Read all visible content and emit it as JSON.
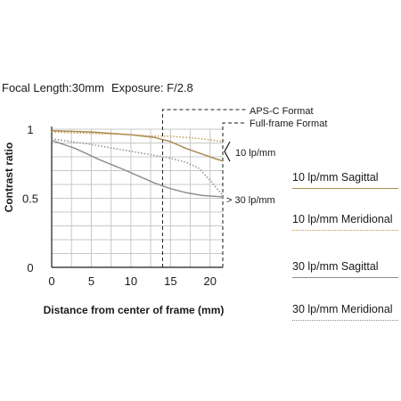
{
  "header": {
    "focal_length": "Focal Length:30mm",
    "exposure": "Exposure: F/2.8"
  },
  "legend": [
    {
      "label": "10 lp/mm Sagittal",
      "color": "#a88c52",
      "style": "solid"
    },
    {
      "label": "10 lp/mm Meridional",
      "color": "#c29a5a",
      "style": "dotted"
    },
    {
      "label": "30 lp/mm Sagittal",
      "color": "#8f8f8f",
      "style": "solid"
    },
    {
      "label": "30 lp/mm Meridional",
      "color": "#8f8f8f",
      "style": "dotted"
    }
  ],
  "chart_data": {
    "type": "line",
    "xlabel": "Distance from center of frame (mm)",
    "ylabel": "Contrast ratio",
    "xlim": [
      0,
      21.6
    ],
    "ylim": [
      0,
      1
    ],
    "x_ticks": [
      "0",
      "5",
      "10",
      "15",
      "20"
    ],
    "y_ticks": [
      "0",
      "0.5",
      "1"
    ],
    "grid": true,
    "series": [
      {
        "name": "10 lp/mm Sagittal",
        "color": "#a88c52",
        "dash": "solid",
        "points": [
          [
            0,
            0.99
          ],
          [
            5,
            0.98
          ],
          [
            10,
            0.96
          ],
          [
            13,
            0.94
          ],
          [
            15,
            0.91
          ],
          [
            17,
            0.86
          ],
          [
            19,
            0.82
          ],
          [
            20.5,
            0.79
          ],
          [
            21.6,
            0.77
          ]
        ]
      },
      {
        "name": "10 lp/mm Meridional",
        "color": "#c29a5a",
        "dash": "dotted",
        "points": [
          [
            0,
            0.98
          ],
          [
            5,
            0.97
          ],
          [
            10,
            0.96
          ],
          [
            13,
            0.95
          ],
          [
            15,
            0.95
          ],
          [
            17,
            0.94
          ],
          [
            19,
            0.93
          ],
          [
            21.6,
            0.91
          ]
        ]
      },
      {
        "name": "30 lp/mm Sagittal",
        "color": "#8f8f8f",
        "dash": "solid",
        "points": [
          [
            0,
            0.92
          ],
          [
            3,
            0.86
          ],
          [
            6,
            0.78
          ],
          [
            9,
            0.71
          ],
          [
            11,
            0.66
          ],
          [
            13,
            0.61
          ],
          [
            15,
            0.57
          ],
          [
            17,
            0.54
          ],
          [
            19,
            0.52
          ],
          [
            21.6,
            0.51
          ]
        ]
      },
      {
        "name": "30 lp/mm Meridional",
        "color": "#8f8f8f",
        "dash": "dotted",
        "points": [
          [
            0,
            0.93
          ],
          [
            5,
            0.89
          ],
          [
            10,
            0.84
          ],
          [
            13,
            0.81
          ],
          [
            15,
            0.79
          ],
          [
            17,
            0.76
          ],
          [
            18.5,
            0.72
          ],
          [
            20,
            0.63
          ],
          [
            21.6,
            0.52
          ]
        ]
      }
    ],
    "annotations": {
      "apsc_label": "APS-C Format",
      "apsc_x": 14,
      "fullframe_label": "Full-frame Format",
      "fullframe_x": 21.6,
      "label_10": "10 lp/mm",
      "label_30": "> 30 lp/mm"
    }
  }
}
